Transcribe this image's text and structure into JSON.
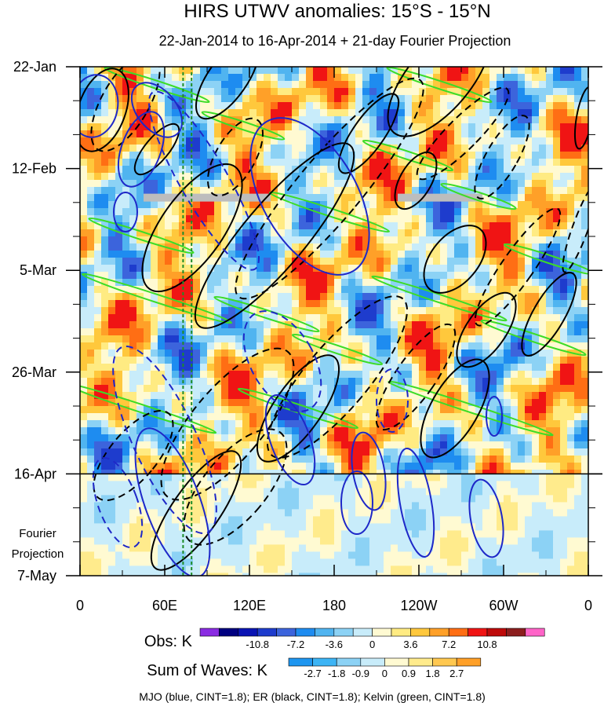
{
  "chart_data": {
    "type": "heatmap",
    "title": "HIRS UTWV anomalies: 15°S - 15°N",
    "subtitle": "22-Jan-2014 to 16-Apr-2014 + 21-day Fourier Projection",
    "x_tick_labels": [
      "0",
      "60E",
      "120E",
      "180",
      "120W",
      "60W",
      "0"
    ],
    "x_tick_lons": [
      0,
      60,
      120,
      180,
      240,
      300,
      360
    ],
    "xlim": [
      0,
      360
    ],
    "y_tick_labels": [
      "22-Jan",
      "12-Feb",
      "5-Mar",
      "26-Mar",
      "16-Apr",
      "7-May"
    ],
    "y_tick_days": [
      0,
      21,
      42,
      63,
      84,
      105
    ],
    "ylim_days": [
      0,
      105
    ],
    "projection_start_day": 84,
    "projection_label": [
      "Fourier",
      "Projection"
    ],
    "reference_lons": [
      73,
      79
    ],
    "missing_data": [
      {
        "day": 27,
        "lon_start": 45,
        "lon_end": 135
      },
      {
        "day": 27,
        "lon_start": 225,
        "lon_end": 285
      }
    ],
    "obs_legend": {
      "label": "Obs: K",
      "colors": [
        "#8a2be2",
        "#000080",
        "#0a14b4",
        "#1e3ccd",
        "#3c64dc",
        "#1e8cf0",
        "#50b4f0",
        "#8cd2f5",
        "#c8ecfa",
        "#fffad2",
        "#ffeb82",
        "#ffc83c",
        "#ffa028",
        "#ff6e14",
        "#f01414",
        "#be0a0a",
        "#8c1e1e",
        "#ff64c8"
      ],
      "tick_labels": [
        "-10.8",
        "-7.2",
        "-3.6",
        "0",
        "3.6",
        "7.2",
        "10.8"
      ]
    },
    "waves_legend": {
      "label": "Sum of Waves: K",
      "colors": [
        "#1e96f0",
        "#3cb4f5",
        "#8cd2f5",
        "#c8ecfa",
        "#fffad2",
        "#ffeb8c",
        "#ffc850",
        "#ffa028"
      ],
      "tick_labels": [
        "-2.7",
        "-1.8",
        "-0.9",
        "0",
        "0.9",
        "1.8",
        "2.7"
      ]
    },
    "footer": "MJO (blue, CINT=1.8); ER (black, CINT=1.8); Kelvin (green, CINT=1.8)",
    "series": [
      {
        "name": "MJO",
        "color": "#1e28c8"
      },
      {
        "name": "ER",
        "color": "#000000"
      },
      {
        "name": "Kelvin",
        "color": "#3cdc28"
      }
    ]
  }
}
